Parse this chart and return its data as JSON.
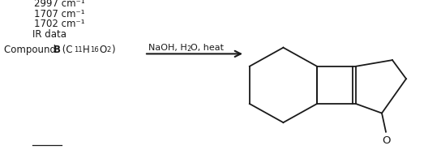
{
  "bg_color": "#ffffff",
  "line_color": "#1a1a1a",
  "font_size": 8.5,
  "figsize": [
    5.44,
    2.07
  ],
  "dpi": 100,
  "ir_data": [
    "1702 cm⁻¹",
    "1707 cm⁻¹",
    "2997 cm⁻¹"
  ]
}
